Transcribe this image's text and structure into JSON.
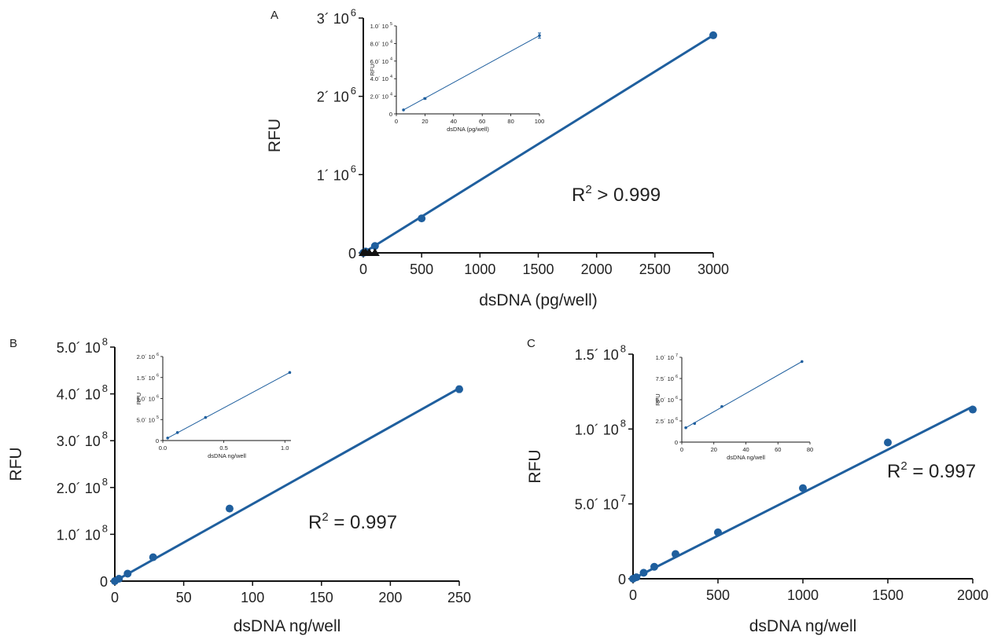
{
  "chart_data": [
    {
      "panel": "A",
      "type": "scatter",
      "xlabel": "dsDNA (pg/well)",
      "ylabel": "RFU",
      "xlim": [
        0,
        3000
      ],
      "ylim": [
        0,
        3000000
      ],
      "xticks": [
        0,
        500,
        1000,
        1500,
        2000,
        2500,
        3000
      ],
      "xtick_labels": [
        "0",
        "500",
        "1000",
        "1500",
        "2000",
        "2500",
        "3000"
      ],
      "yticks": [
        0,
        1000000,
        2000000,
        3000000
      ],
      "ytick_labels": [
        {
          "mantissa": "0",
          "exp": ""
        },
        {
          "mantissa": "1´ 10",
          "exp": "6"
        },
        {
          "mantissa": "2´ 10",
          "exp": "6"
        },
        {
          "mantissa": "3´ 10",
          "exp": "6"
        }
      ],
      "annotation": {
        "base": "R",
        "sup": "2",
        "rest": " > 0.999"
      },
      "series": [
        {
          "marker": "circle",
          "points": [
            [
              0,
              0
            ],
            [
              5,
              4500
            ],
            [
              20,
              17500
            ],
            [
              100,
              88000
            ],
            [
              500,
              440000
            ],
            [
              3000,
              2780000
            ]
          ],
          "fit": [
            [
              0,
              0
            ],
            [
              3000,
              2780000
            ]
          ]
        },
        {
          "marker": "triangle",
          "points": [
            [
              0,
              0
            ],
            [
              20,
              0
            ],
            [
              50,
              0
            ],
            [
              100,
              0
            ]
          ]
        }
      ],
      "inset": {
        "xlabel": "dsDNA (pg/well)",
        "ylabel": "RFU",
        "xlim": [
          0,
          100
        ],
        "ylim": [
          0,
          100000
        ],
        "xticks": [
          0,
          20,
          40,
          60,
          80,
          100
        ],
        "xtick_labels": [
          "0",
          "20",
          "40",
          "60",
          "80",
          "100"
        ],
        "yticks": [
          0,
          20000,
          40000,
          60000,
          80000,
          100000
        ],
        "ytick_labels": [
          {
            "mantissa": "0",
            "exp": ""
          },
          {
            "mantissa": "2.0´ 10",
            "exp": "4"
          },
          {
            "mantissa": "4.0´ 10",
            "exp": "4"
          },
          {
            "mantissa": "6.0´ 10",
            "exp": "4"
          },
          {
            "mantissa": "8.0´ 10",
            "exp": "4"
          },
          {
            "mantissa": "1.0´ 10",
            "exp": "5"
          }
        ],
        "points": [
          [
            5,
            4500
          ],
          [
            20,
            17500
          ],
          [
            100,
            89000
          ]
        ],
        "errors": [
          0,
          800,
          3000
        ],
        "fit": [
          [
            5,
            4500
          ],
          [
            100,
            89000
          ]
        ]
      }
    },
    {
      "panel": "B",
      "type": "scatter",
      "xlabel": "dsDNA ng/well",
      "ylabel": "RFU",
      "xlim": [
        0,
        250
      ],
      "ylim": [
        0,
        500000000
      ],
      "xticks": [
        0,
        50,
        100,
        150,
        200,
        250
      ],
      "xtick_labels": [
        "0",
        "50",
        "100",
        "150",
        "200",
        "250"
      ],
      "yticks": [
        0,
        100000000,
        200000000,
        300000000,
        400000000,
        500000000
      ],
      "ytick_labels": [
        {
          "mantissa": "0",
          "exp": ""
        },
        {
          "mantissa": "1.0´ 10",
          "exp": "8"
        },
        {
          "mantissa": "2.0´ 10",
          "exp": "8"
        },
        {
          "mantissa": "3.0´ 10",
          "exp": "8"
        },
        {
          "mantissa": "4.0´ 10",
          "exp": "8"
        },
        {
          "mantissa": "5.0´ 10",
          "exp": "8"
        }
      ],
      "annotation": {
        "base": "R",
        "sup": "2",
        "rest": " = 0.997"
      },
      "series": [
        {
          "marker": "circle",
          "points": [
            [
              0,
              0
            ],
            [
              3,
              5000000
            ],
            [
              9.3,
              16000000
            ],
            [
              27.8,
              51000000
            ],
            [
              83.3,
              155000000
            ],
            [
              250,
              410000000
            ]
          ],
          "errors": [
            0,
            0,
            0,
            0,
            0,
            8000000
          ],
          "fit": [
            [
              0,
              0
            ],
            [
              250,
              412000000
            ]
          ]
        }
      ],
      "inset": {
        "xlabel": "dsDNA ng/well",
        "ylabel": "RFU",
        "xlim": [
          0,
          1.05
        ],
        "ylim": [
          0,
          2000000
        ],
        "xticks": [
          0,
          0.5,
          1
        ],
        "xtick_labels": [
          "0.0",
          "0.5",
          "1.0"
        ],
        "yticks": [
          0,
          500000,
          1000000,
          1500000,
          2000000
        ],
        "ytick_labels": [
          {
            "mantissa": "0",
            "exp": ""
          },
          {
            "mantissa": "5.0´ 10",
            "exp": "5"
          },
          {
            "mantissa": "1.0´ 10",
            "exp": "6"
          },
          {
            "mantissa": "1.5´ 10",
            "exp": "6"
          },
          {
            "mantissa": "2.0´ 10",
            "exp": "6"
          }
        ],
        "points": [
          [
            0.04,
            60000
          ],
          [
            0.12,
            190000
          ],
          [
            0.35,
            550000
          ],
          [
            1.04,
            1620000
          ]
        ],
        "errors": [
          0,
          0,
          0,
          0
        ],
        "fit": [
          [
            0.04,
            60000
          ],
          [
            1.04,
            1620000
          ]
        ]
      }
    },
    {
      "panel": "C",
      "type": "scatter",
      "xlabel": "dsDNA ng/well",
      "ylabel": "RFU",
      "xlim": [
        0,
        2000
      ],
      "ylim": [
        0,
        150000000
      ],
      "xticks": [
        0,
        500,
        1000,
        1500,
        2000
      ],
      "xtick_labels": [
        "0",
        "500",
        "1000",
        "1500",
        "2000"
      ],
      "yticks": [
        0,
        50000000,
        100000000,
        150000000
      ],
      "ytick_labels": [
        {
          "mantissa": "0",
          "exp": ""
        },
        {
          "mantissa": "5.0´ 10",
          "exp": "7"
        },
        {
          "mantissa": "1.0´ 10",
          "exp": "8"
        },
        {
          "mantissa": "1.5´ 10",
          "exp": "8"
        }
      ],
      "annotation": {
        "base": "R",
        "sup": "2",
        "rest": " = 0.997"
      },
      "series": [
        {
          "marker": "circle",
          "points": [
            [
              0,
              0
            ],
            [
              20,
              1000000
            ],
            [
              62.5,
              4000000
            ],
            [
              125,
              8000000
            ],
            [
              250,
              16500000
            ],
            [
              500,
              31000000
            ],
            [
              1000,
              60500000
            ],
            [
              1500,
              91000000
            ],
            [
              2000,
              113000000
            ]
          ],
          "fit": [
            [
              0,
              0
            ],
            [
              2000,
              115000000
            ]
          ]
        }
      ],
      "inset": {
        "xlabel": "dsDNA ng/well",
        "ylabel": "RFU",
        "xlim": [
          0,
          80
        ],
        "ylim": [
          0,
          10000000
        ],
        "xticks": [
          0,
          20,
          40,
          60,
          80
        ],
        "xtick_labels": [
          "0",
          "20",
          "40",
          "60",
          "80"
        ],
        "yticks": [
          0,
          2500000,
          5000000,
          7500000,
          10000000
        ],
        "ytick_labels": [
          {
            "mantissa": "0",
            "exp": ""
          },
          {
            "mantissa": "2.5´ 10",
            "exp": "6"
          },
          {
            "mantissa": "5.0´ 10",
            "exp": "6"
          },
          {
            "mantissa": "7.5´ 10",
            "exp": "6"
          },
          {
            "mantissa": "1.0´ 10",
            "exp": "7"
          }
        ],
        "points": [
          [
            2.5,
            1700000
          ],
          [
            8,
            2200000
          ],
          [
            25,
            4200000
          ],
          [
            75,
            9500000
          ]
        ],
        "errors": [
          0,
          0,
          0,
          0
        ],
        "fit": [
          [
            2.5,
            1700000
          ],
          [
            75,
            9500000
          ]
        ]
      }
    }
  ],
  "colors": {
    "series": "#1f5f9e",
    "axis": "#111111",
    "marker_black": "#111111"
  }
}
